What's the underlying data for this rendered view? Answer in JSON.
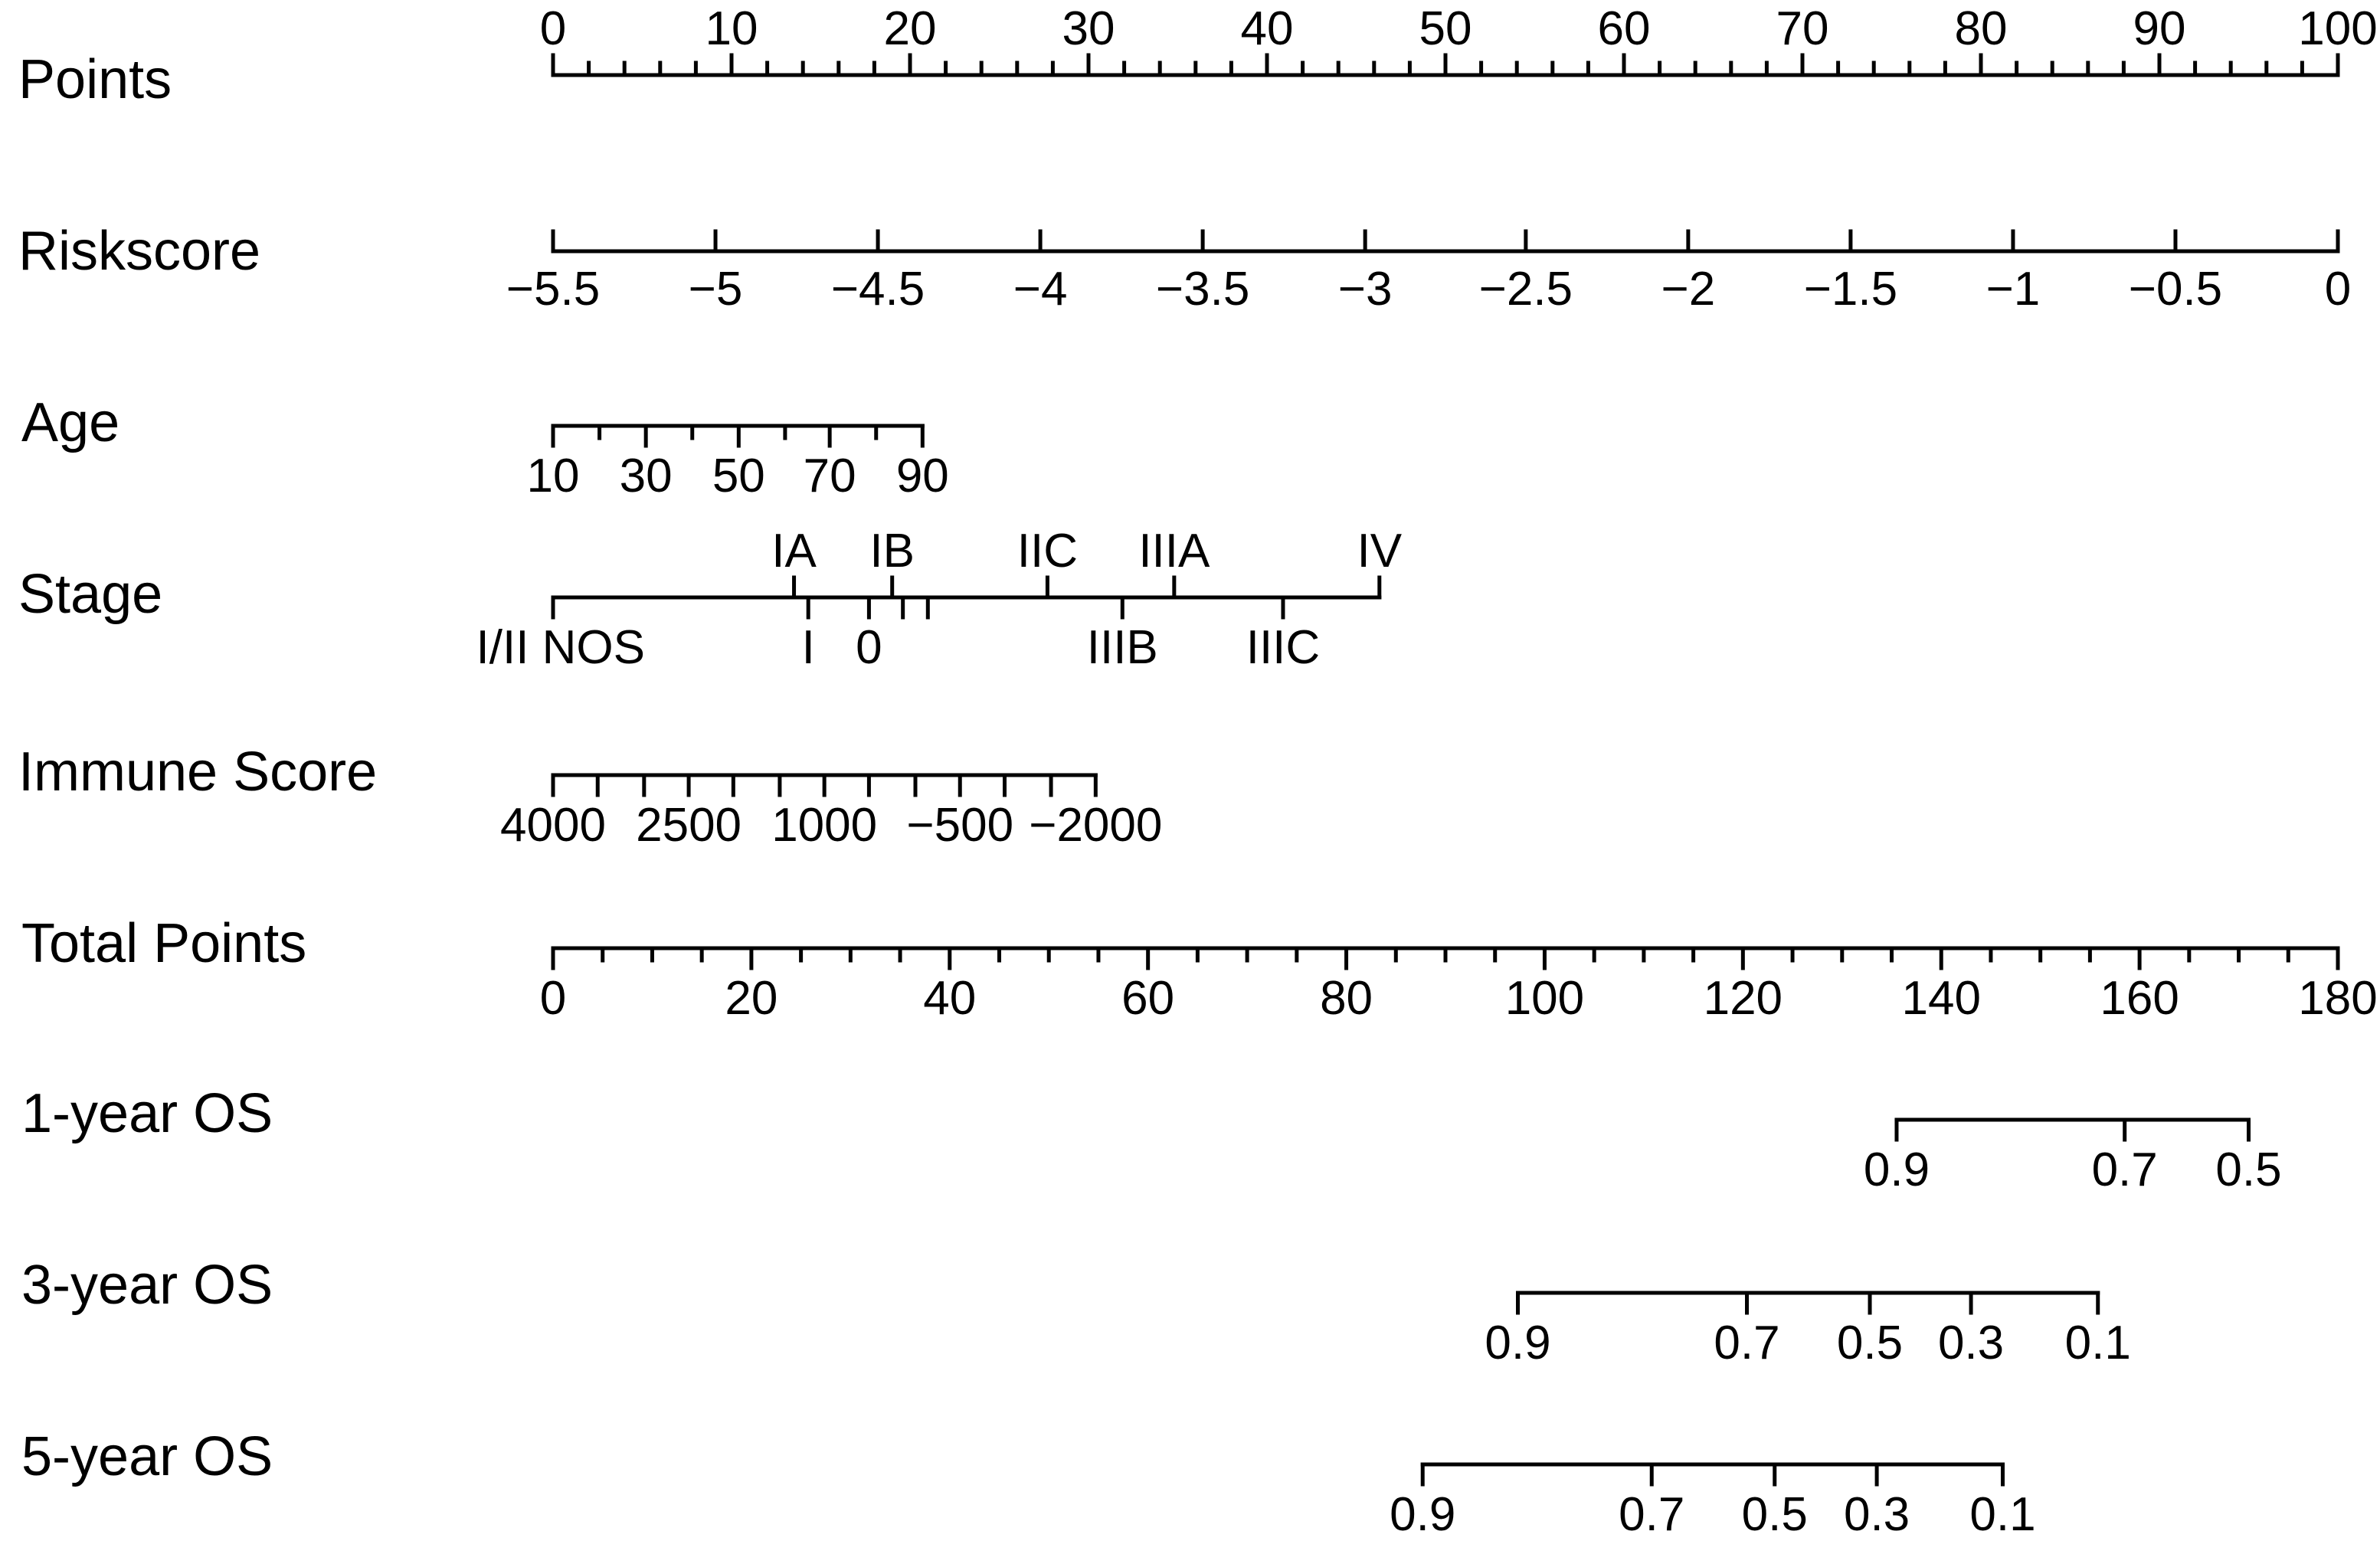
{
  "chart_data": {
    "type": "nomogram",
    "rows": [
      {
        "key": "points",
        "label": "Points",
        "range": [
          0,
          100
        ],
        "ticks": [
          {
            "value": 0,
            "label": "0"
          },
          {
            "value": 10,
            "label": "10"
          },
          {
            "value": 20,
            "label": "20"
          },
          {
            "value": 30,
            "label": "30"
          },
          {
            "value": 40,
            "label": "40"
          },
          {
            "value": 50,
            "label": "50"
          },
          {
            "value": 60,
            "label": "60"
          },
          {
            "value": 70,
            "label": "70"
          },
          {
            "value": 80,
            "label": "80"
          },
          {
            "value": 90,
            "label": "90"
          },
          {
            "value": 100,
            "label": "100"
          }
        ]
      },
      {
        "key": "riskscore",
        "label": "Riskscore",
        "variable_range": [
          -5.5,
          0
        ],
        "points_range": [
          0,
          100
        ],
        "ticks": [
          {
            "value": -5.5,
            "label": "−5.5",
            "points": 0
          },
          {
            "value": -5,
            "label": "−5",
            "points": 9.1
          },
          {
            "value": -4.5,
            "label": "−4.5",
            "points": 18.2
          },
          {
            "value": -4,
            "label": "−4",
            "points": 27.3
          },
          {
            "value": -3.5,
            "label": "−3.5",
            "points": 36.4
          },
          {
            "value": -3,
            "label": "−3",
            "points": 45.5
          },
          {
            "value": -2.5,
            "label": "−2.5",
            "points": 54.5
          },
          {
            "value": -2,
            "label": "−2",
            "points": 63.6
          },
          {
            "value": -1.5,
            "label": "−1.5",
            "points": 72.7
          },
          {
            "value": -1,
            "label": "−1",
            "points": 81.8
          },
          {
            "value": -0.5,
            "label": "−0.5",
            "points": 90.9
          },
          {
            "value": 0,
            "label": "0",
            "points": 100
          }
        ]
      },
      {
        "key": "age",
        "label": "Age",
        "variable_range": [
          10,
          90
        ],
        "points_range": [
          0,
          20.7
        ],
        "ticks": [
          {
            "value": 10,
            "points": 0,
            "label": "10"
          },
          {
            "value": 20,
            "points": 2.6
          },
          {
            "value": 30,
            "points": 5.2,
            "label": "30"
          },
          {
            "value": 40,
            "points": 7.8
          },
          {
            "value": 50,
            "points": 10.4,
            "label": "50"
          },
          {
            "value": 60,
            "points": 13.0
          },
          {
            "value": 70,
            "points": 15.5,
            "label": "70"
          },
          {
            "value": 80,
            "points": 18.1
          },
          {
            "value": 90,
            "points": 20.7,
            "label": "90"
          }
        ]
      },
      {
        "key": "stage",
        "label": "Stage",
        "points_range": [
          0,
          46.3
        ],
        "categories_top": [
          {
            "label": "IA",
            "points": 13.5
          },
          {
            "label": "IB",
            "points": 19.0
          },
          {
            "label": "IIC",
            "points": 27.7
          },
          {
            "label": "IIIA",
            "points": 34.8
          },
          {
            "label": "IV",
            "points": 46.3
          }
        ],
        "categories_bottom": [
          {
            "label": "I/II NOS",
            "points": 0
          },
          {
            "label": "I",
            "points": 14.3
          },
          {
            "label": "0",
            "points": 17.7
          },
          {
            "label": "IIIB",
            "points": 31.9
          },
          {
            "label": "IIIC",
            "points": 40.9
          }
        ],
        "unlabeled_ticks": [
          {
            "points": 19.6
          },
          {
            "points": 21.0
          }
        ]
      },
      {
        "key": "immune_score",
        "label": "Immune Score",
        "variable_range": [
          4000,
          -2000
        ],
        "points_range": [
          0,
          30.4
        ],
        "ticks": [
          {
            "value": 4000,
            "points": 0,
            "label": "4000"
          },
          {
            "value": 3500,
            "points": 2.5
          },
          {
            "value": 3000,
            "points": 5.1
          },
          {
            "value": 2500,
            "points": 7.6,
            "label": "2500"
          },
          {
            "value": 2000,
            "points": 10.1
          },
          {
            "value": 1500,
            "points": 12.7
          },
          {
            "value": 1000,
            "points": 15.2,
            "label": "1000"
          },
          {
            "value": 500,
            "points": 17.7
          },
          {
            "value": 0,
            "points": 20.3
          },
          {
            "value": -500,
            "points": 22.8,
            "label": "−500"
          },
          {
            "value": -1000,
            "points": 25.3
          },
          {
            "value": -1500,
            "points": 27.9
          },
          {
            "value": -2000,
            "points": 30.4,
            "label": "−2000"
          }
        ]
      },
      {
        "key": "total_points",
        "label": "Total Points",
        "range": [
          0,
          180
        ],
        "ticks": [
          {
            "value": 0,
            "label": "0"
          },
          {
            "value": 20,
            "label": "20"
          },
          {
            "value": 40,
            "label": "40"
          },
          {
            "value": 60,
            "label": "60"
          },
          {
            "value": 80,
            "label": "80"
          },
          {
            "value": 100,
            "label": "100"
          },
          {
            "value": 120,
            "label": "120"
          },
          {
            "value": 140,
            "label": "140"
          },
          {
            "value": 160,
            "label": "160"
          },
          {
            "value": 180,
            "label": "180"
          }
        ]
      },
      {
        "key": "os_1y",
        "label": "1-year OS",
        "ticks": [
          {
            "value": 0.9,
            "label": "0.9",
            "total_points": 135.5
          },
          {
            "value": 0.7,
            "label": "0.7",
            "total_points": 158.5
          },
          {
            "value": 0.5,
            "label": "0.5",
            "total_points": 171.0
          }
        ]
      },
      {
        "key": "os_3y",
        "label": "3-year OS",
        "ticks": [
          {
            "value": 0.9,
            "label": "0.9",
            "total_points": 97.3
          },
          {
            "value": 0.7,
            "label": "0.7",
            "total_points": 120.4
          },
          {
            "value": 0.5,
            "label": "0.5",
            "total_points": 132.8
          },
          {
            "value": 0.3,
            "label": "0.3",
            "total_points": 143.0
          },
          {
            "value": 0.1,
            "label": "0.1",
            "total_points": 155.8
          }
        ]
      },
      {
        "key": "os_5y",
        "label": "5-year OS",
        "ticks": [
          {
            "value": 0.9,
            "label": "0.9",
            "total_points": 87.7
          },
          {
            "value": 0.7,
            "label": "0.7",
            "total_points": 110.8
          },
          {
            "value": 0.5,
            "label": "0.5",
            "total_points": 123.2
          },
          {
            "value": 0.3,
            "label": "0.3",
            "total_points": 133.5
          },
          {
            "value": 0.1,
            "label": "0.1",
            "total_points": 146.2
          }
        ]
      }
    ],
    "grid": false
  }
}
